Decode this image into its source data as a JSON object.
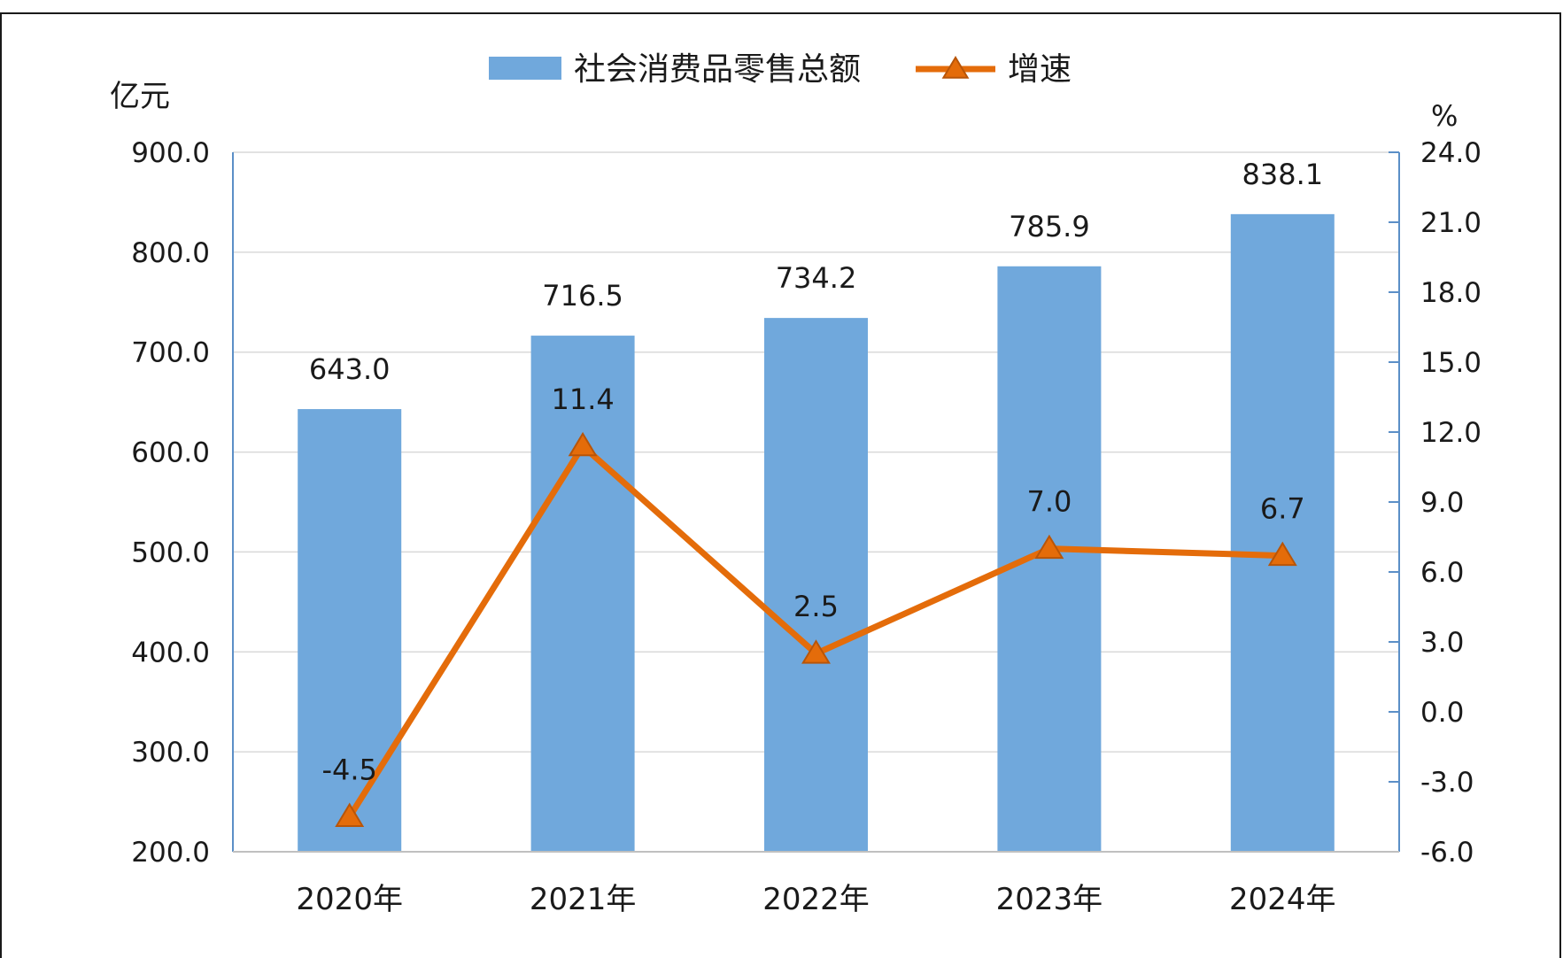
{
  "chart_data": {
    "type": "bar",
    "categories": [
      "2020年",
      "2021年",
      "2022年",
      "2023年",
      "2024年"
    ],
    "series": [
      {
        "name": "社会消费品零售总额",
        "type": "bar",
        "axis": "left",
        "values": [
          643.0,
          716.5,
          734.2,
          785.9,
          838.1
        ],
        "labels": [
          "643.0",
          "716.5",
          "734.2",
          "785.9",
          "838.1"
        ],
        "color": "#70a8dc"
      },
      {
        "name": "增速",
        "type": "line",
        "axis": "right",
        "marker": "triangle",
        "values": [
          -4.5,
          11.4,
          2.5,
          7.0,
          6.7
        ],
        "labels": [
          "-4.5",
          "11.4",
          "2.5",
          "7.0",
          "6.7"
        ],
        "color": "#e46c0a"
      }
    ],
    "y_left": {
      "unit": "亿元",
      "range": [
        200,
        900
      ],
      "ticks": [
        "200.0",
        "300.0",
        "400.0",
        "500.0",
        "600.0",
        "700.0",
        "800.0",
        "900.0"
      ]
    },
    "y_right": {
      "unit": "%",
      "range": [
        -6,
        24
      ],
      "ticks": [
        "-6.0",
        "-3.0",
        "0.0",
        "3.0",
        "6.0",
        "9.0",
        "12.0",
        "15.0",
        "18.0",
        "21.0",
        "24.0"
      ]
    },
    "grid": true,
    "legend_position": "top-center"
  }
}
